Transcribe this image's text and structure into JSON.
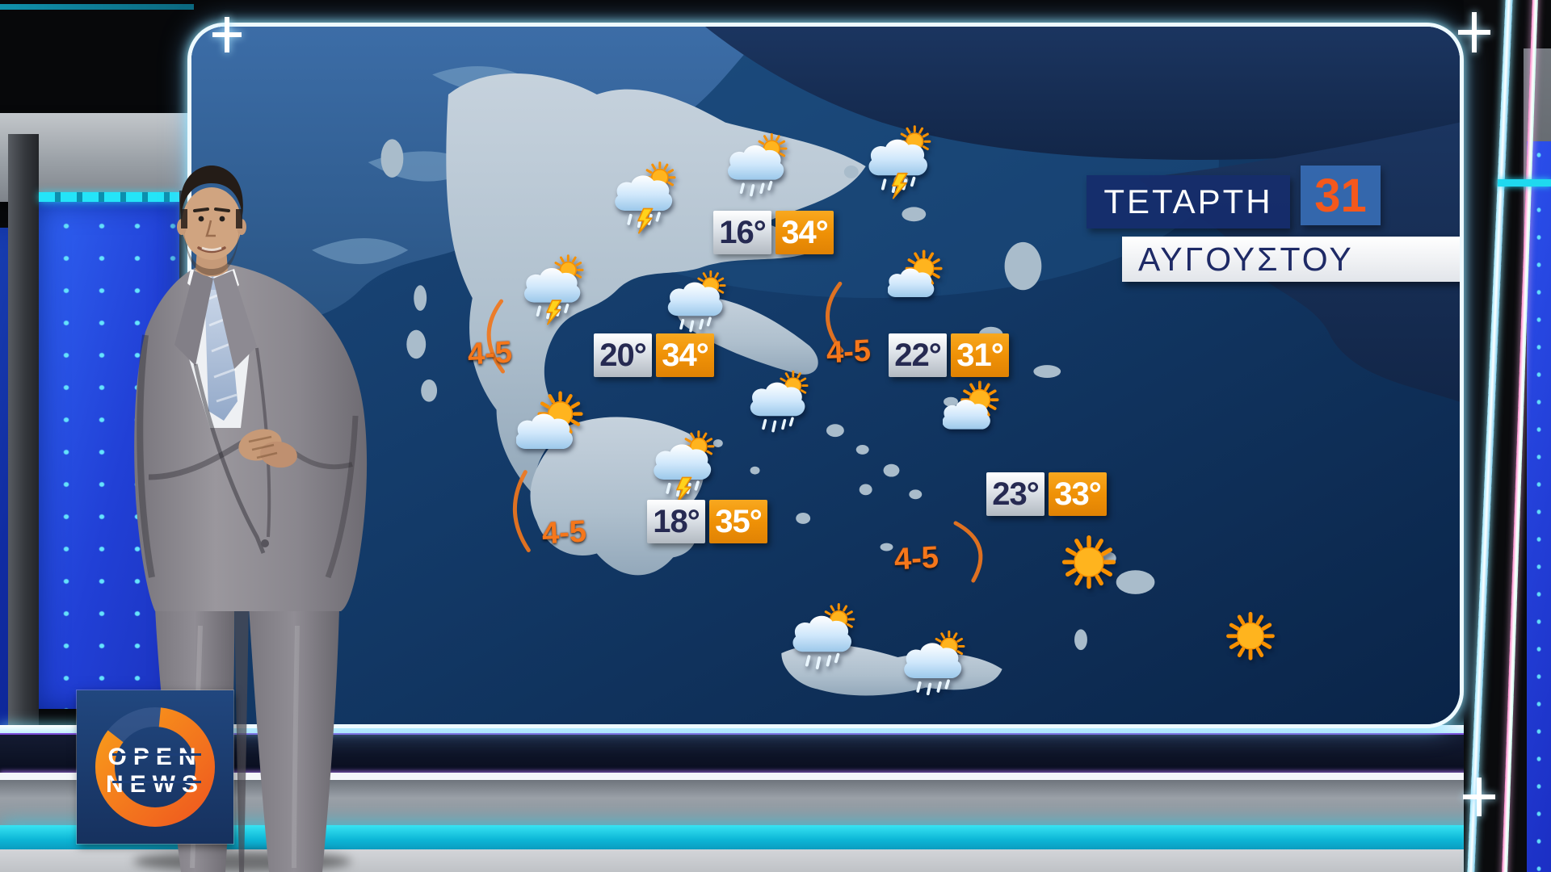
{
  "broadcast": {
    "channel_logo": {
      "line1": "OPEN",
      "line2": "NEWS"
    }
  },
  "date_panel": {
    "day": "ΤΕΤΑΡΤΗ",
    "date_number": "31",
    "month": "ΑΥΓΟΥΣΤΟΥ"
  },
  "map": {
    "stations": [
      {
        "id": "north",
        "low": "16°",
        "high": "34°"
      },
      {
        "id": "central-west",
        "low": "20°",
        "high": "34°"
      },
      {
        "id": "northeast-aegean",
        "low": "22°",
        "high": "31°"
      },
      {
        "id": "south",
        "low": "18°",
        "high": "35°"
      },
      {
        "id": "southeast-aegean",
        "low": "23°",
        "high": "33°"
      }
    ],
    "wind_labels": [
      {
        "id": "ionian-north",
        "text": "4-5"
      },
      {
        "id": "ionian-south",
        "text": "4-5"
      },
      {
        "id": "aegean-central",
        "text": "4-5"
      },
      {
        "id": "aegean-south",
        "text": "4-5"
      }
    ],
    "weather_icons": [
      {
        "id": "epirus",
        "type": "storm-sun"
      },
      {
        "id": "macedonia",
        "type": "rain-sun"
      },
      {
        "id": "thrace",
        "type": "storm-sun"
      },
      {
        "id": "west-central",
        "type": "storm-sun"
      },
      {
        "id": "thessaly",
        "type": "rain-sun"
      },
      {
        "id": "north-aegean",
        "type": "partly-sunny"
      },
      {
        "id": "ionian",
        "type": "partly-sunny"
      },
      {
        "id": "peloponnese",
        "type": "storm-sun"
      },
      {
        "id": "attica-evia",
        "type": "rain-sun"
      },
      {
        "id": "cyclades",
        "type": "partly-sunny"
      },
      {
        "id": "crete-west",
        "type": "rain-sun"
      },
      {
        "id": "crete-east",
        "type": "rain-sun"
      },
      {
        "id": "rhodes",
        "type": "sunny"
      },
      {
        "id": "southeast-sea",
        "type": "sunny"
      }
    ]
  },
  "colors": {
    "accent_orange": "#f0761c",
    "badge_high_bg": "#ef9106",
    "badge_low_bg": "#dde2e8",
    "date_day_bg": "#162d6b",
    "date_number_color": "#f4581c",
    "month_text": "#1e2a66",
    "led_blue": "#2140d6",
    "cyan_glow": "#19d3e8",
    "sea_blue": "#123a66",
    "logo_bg": "#1c3e78"
  }
}
